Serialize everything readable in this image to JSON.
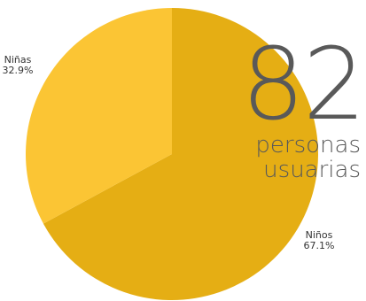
{
  "chart_data": {
    "type": "pie",
    "slices": [
      {
        "label": "Niños",
        "value": 67.1,
        "display": "67.1%",
        "color": "#E5AE14"
      },
      {
        "label": "Niñas",
        "value": 32.9,
        "display": "32.9%",
        "color": "#FBC534"
      }
    ],
    "legend": "none"
  },
  "kpi": {
    "number": "82",
    "line1": "personas",
    "line2": "usuarias"
  },
  "colors": {
    "text": "#595959",
    "label": "#333333"
  }
}
